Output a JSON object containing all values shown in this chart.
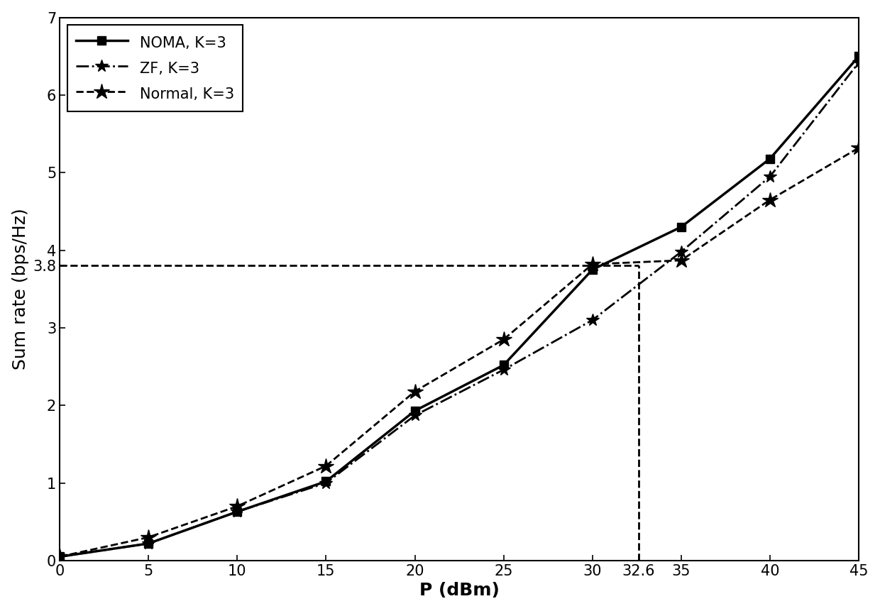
{
  "x": [
    0,
    5,
    10,
    15,
    20,
    25,
    30,
    35,
    40,
    45
  ],
  "noma_y": [
    0.05,
    0.22,
    0.63,
    1.02,
    1.93,
    2.52,
    3.75,
    4.3,
    5.18,
    6.5
  ],
  "zf_y": [
    0.05,
    0.22,
    0.63,
    1.0,
    1.87,
    2.46,
    3.1,
    3.98,
    4.95,
    6.42
  ],
  "normal_y": [
    0.05,
    0.3,
    0.7,
    1.22,
    2.18,
    2.85,
    3.82,
    3.87,
    4.65,
    5.32
  ],
  "hline_y": 3.8,
  "vline_x": 32.6,
  "xlabel": "P (dBm)",
  "ylabel": "Sum rate (bps/Hz)",
  "xlim": [
    0,
    45
  ],
  "ylim": [
    0,
    7
  ],
  "xticks": [
    0,
    5,
    10,
    15,
    20,
    25,
    30,
    32.6,
    35,
    40,
    45
  ],
  "xtick_labels": [
    "0",
    "5",
    "10",
    "15",
    "20",
    "25",
    "30",
    "32.6",
    "35",
    "40",
    "45"
  ],
  "yticks": [
    0,
    1,
    2,
    3,
    3.8,
    4,
    5,
    6,
    7
  ],
  "ytick_labels": [
    "0",
    "1",
    "2",
    "3",
    "3.8",
    "4",
    "5",
    "6",
    "7"
  ],
  "legend": [
    "NOMA, K=3",
    "ZF, K=3",
    "Normal, K=3"
  ],
  "line_color": "#000000",
  "bg_color": "#ffffff",
  "tick_fontsize": 15,
  "label_fontsize": 18,
  "legend_fontsize": 15
}
